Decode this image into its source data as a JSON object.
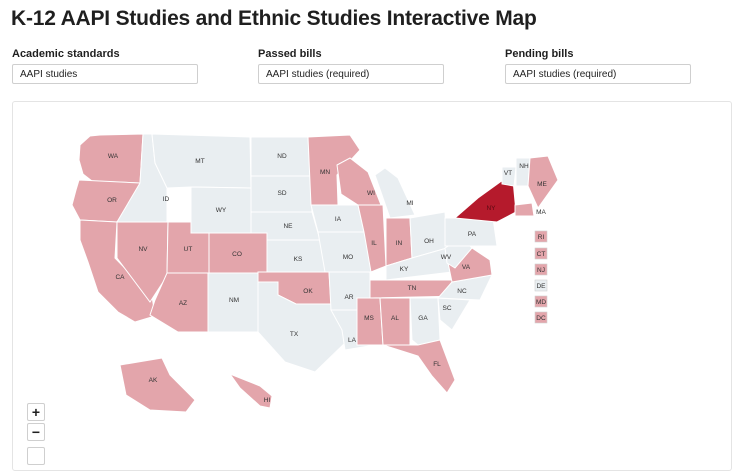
{
  "title": "K-12 AAPI Studies and Ethnic Studies Interactive Map",
  "filters": [
    {
      "label": "Academic standards",
      "value": "AAPI studies"
    },
    {
      "label": "Passed bills",
      "value": "AAPI studies (required)"
    },
    {
      "label": "Pending bills",
      "value": "AAPI studies (required)"
    }
  ],
  "zoom_controls": {
    "in": "+",
    "out": "−"
  },
  "colors": {
    "none": "#e9eef1",
    "pink": "#e3a5ab",
    "dark": "#b51a2c",
    "border": "#ffffff",
    "label": "#333333"
  },
  "states": [
    {
      "abbr": "WA",
      "status": "pink"
    },
    {
      "abbr": "OR",
      "status": "pink"
    },
    {
      "abbr": "CA",
      "status": "pink"
    },
    {
      "abbr": "NV",
      "status": "pink"
    },
    {
      "abbr": "ID",
      "status": "none"
    },
    {
      "abbr": "MT",
      "status": "none"
    },
    {
      "abbr": "WY",
      "status": "none"
    },
    {
      "abbr": "UT",
      "status": "pink"
    },
    {
      "abbr": "AZ",
      "status": "pink"
    },
    {
      "abbr": "CO",
      "status": "pink"
    },
    {
      "abbr": "NM",
      "status": "none"
    },
    {
      "abbr": "ND",
      "status": "none"
    },
    {
      "abbr": "SD",
      "status": "none"
    },
    {
      "abbr": "NE",
      "status": "none"
    },
    {
      "abbr": "KS",
      "status": "none"
    },
    {
      "abbr": "OK",
      "status": "pink"
    },
    {
      "abbr": "TX",
      "status": "none"
    },
    {
      "abbr": "MN",
      "status": "pink"
    },
    {
      "abbr": "IA",
      "status": "none"
    },
    {
      "abbr": "MO",
      "status": "none"
    },
    {
      "abbr": "AR",
      "status": "none"
    },
    {
      "abbr": "LA",
      "status": "none"
    },
    {
      "abbr": "WI",
      "status": "pink"
    },
    {
      "abbr": "IL",
      "status": "pink"
    },
    {
      "abbr": "MI",
      "status": "none"
    },
    {
      "abbr": "IN",
      "status": "pink"
    },
    {
      "abbr": "OH",
      "status": "none"
    },
    {
      "abbr": "KY",
      "status": "none"
    },
    {
      "abbr": "TN",
      "status": "pink"
    },
    {
      "abbr": "MS",
      "status": "pink"
    },
    {
      "abbr": "AL",
      "status": "pink"
    },
    {
      "abbr": "GA",
      "status": "none"
    },
    {
      "abbr": "FL",
      "status": "pink"
    },
    {
      "abbr": "SC",
      "status": "none"
    },
    {
      "abbr": "NC",
      "status": "none"
    },
    {
      "abbr": "VA",
      "status": "pink"
    },
    {
      "abbr": "WV",
      "status": "none"
    },
    {
      "abbr": "PA",
      "status": "none"
    },
    {
      "abbr": "NY",
      "status": "dark"
    },
    {
      "abbr": "VT",
      "status": "none"
    },
    {
      "abbr": "NH",
      "status": "none"
    },
    {
      "abbr": "ME",
      "status": "pink"
    },
    {
      "abbr": "MA",
      "status": "pink"
    },
    {
      "abbr": "AK",
      "status": "pink"
    },
    {
      "abbr": "HI",
      "status": "pink"
    }
  ],
  "small_states": [
    {
      "abbr": "RI",
      "status": "pink"
    },
    {
      "abbr": "CT",
      "status": "pink"
    },
    {
      "abbr": "NJ",
      "status": "pink"
    },
    {
      "abbr": "DE",
      "status": "none"
    },
    {
      "abbr": "MD",
      "status": "pink"
    },
    {
      "abbr": "DC",
      "status": "pink"
    }
  ]
}
